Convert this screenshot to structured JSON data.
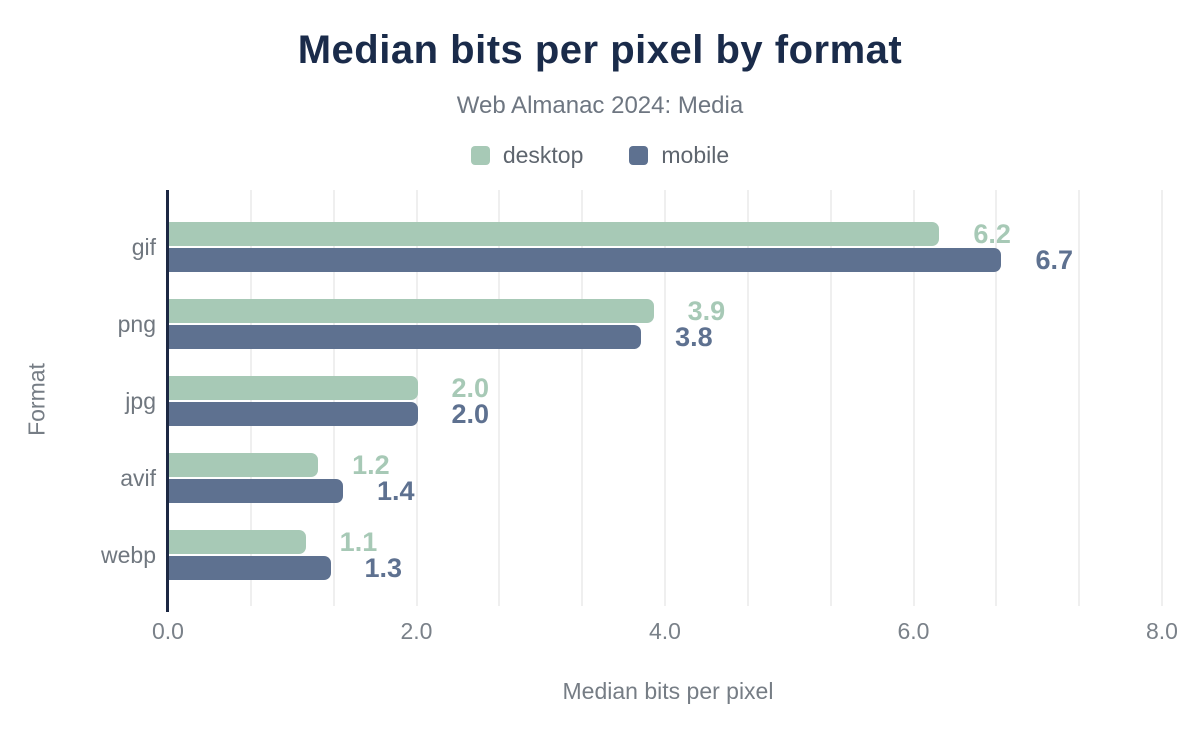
{
  "header": {
    "title": "Median bits per pixel by format",
    "subtitle": "Web Almanac 2024: Media"
  },
  "legend": [
    {
      "label": "desktop",
      "color": "#a7c9b6"
    },
    {
      "label": "mobile",
      "color": "#5e7190"
    }
  ],
  "chart_data": {
    "type": "bar",
    "orientation": "horizontal",
    "title": "Median bits per pixel by format",
    "subtitle": "Web Almanac 2024: Media",
    "categories": [
      "gif",
      "png",
      "jpg",
      "avif",
      "webp"
    ],
    "series": [
      {
        "name": "desktop",
        "color": "#a7c9b6",
        "values": [
          6.2,
          3.9,
          2.0,
          1.2,
          1.1
        ]
      },
      {
        "name": "mobile",
        "color": "#5e7190",
        "values": [
          6.7,
          3.8,
          2.0,
          1.4,
          1.3
        ]
      }
    ],
    "xlabel": "Median bits per pixel",
    "ylabel": "Format",
    "xlim": [
      0,
      8
    ],
    "x_ticks": [
      "0.0",
      "2.0",
      "4.0",
      "6.0",
      "8.0"
    ],
    "x_tick_values": [
      0,
      2,
      4,
      6,
      8
    ],
    "minor_gridlines_per_major": 3,
    "grid": "vertical-minor",
    "legend_position": "top",
    "value_labels": "outside-end",
    "colors": {
      "title": "#1a2b4a",
      "subtitle": "#6e7681",
      "axis_line": "#1c2843",
      "gridline": "#efefef",
      "tick_text": "#7a8189",
      "category_text": "#70777f"
    }
  }
}
